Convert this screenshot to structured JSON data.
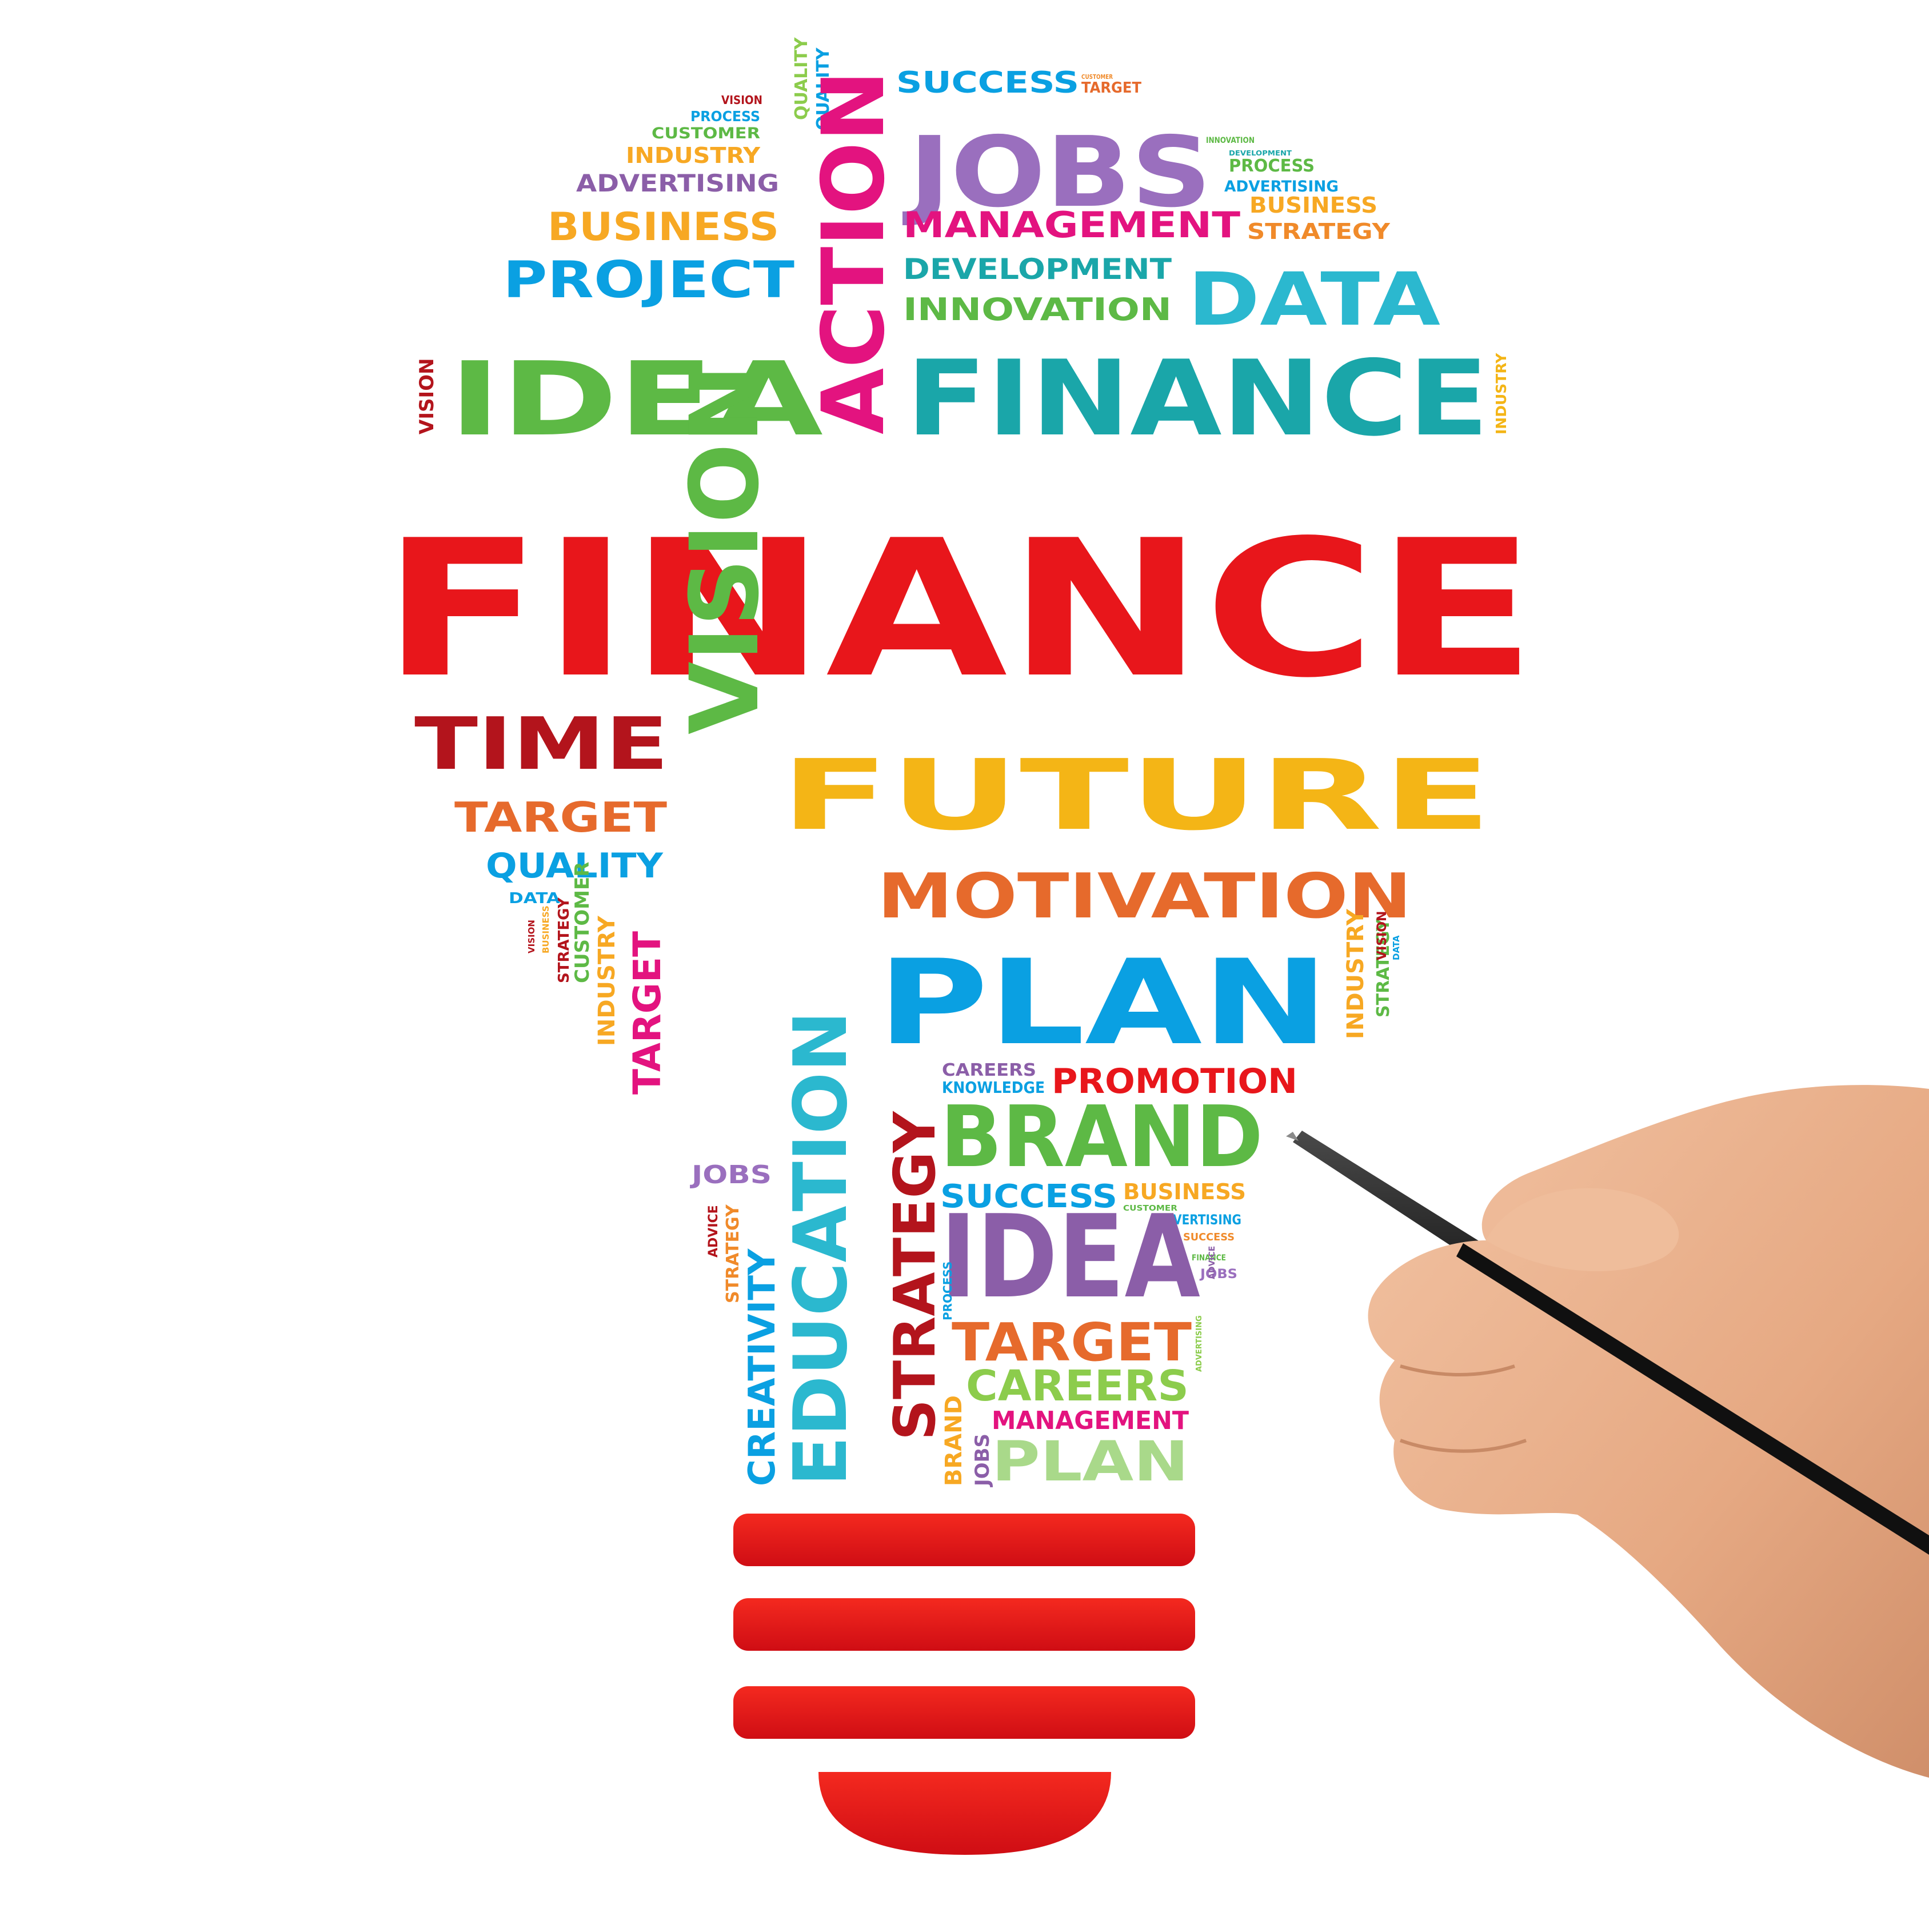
{
  "colors": {
    "red": "#e8161b",
    "dark_red": "#b3141c",
    "pink": "#e3137f",
    "purple": "#9a6fbe",
    "violet": "#8b5ea8",
    "blue": "#0aa0e2",
    "cyan": "#2bb8cf",
    "teal": "#1aa6a9",
    "green": "#5db945",
    "lime": "#8ccc4c",
    "light_green": "#a9d98a",
    "orange": "#f08a2a",
    "amber": "#f7a823",
    "yellow": "#f4b516",
    "burnt": "#e66a2c",
    "skin": "#eab28f",
    "pen": "#1b1b1b"
  },
  "words": [
    {
      "text": "SUCCESS",
      "color": "blue"
    },
    {
      "text": "CUSTOMER",
      "color": "orange"
    },
    {
      "text": "TARGET",
      "color": "burnt"
    },
    {
      "text": "VISION",
      "color": "dark_red"
    },
    {
      "text": "PROCESS",
      "color": "blue"
    },
    {
      "text": "CUSTOMER",
      "color": "green"
    },
    {
      "text": "INDUSTRY",
      "color": "amber"
    },
    {
      "text": "QUALITY",
      "color": "lime"
    },
    {
      "text": "QUALITY",
      "color": "blue"
    },
    {
      "text": "ADVERTISING",
      "color": "violet"
    },
    {
      "text": "BUSINESS",
      "color": "amber"
    },
    {
      "text": "PROJECT",
      "color": "blue"
    },
    {
      "text": "ACTION",
      "color": "pink"
    },
    {
      "text": "JOBS",
      "color": "purple"
    },
    {
      "text": "INNOVATION",
      "color": "green"
    },
    {
      "text": "DEVELOPMENT",
      "color": "teal"
    },
    {
      "text": "PROCESS",
      "color": "green"
    },
    {
      "text": "ADVERTISING",
      "color": "blue"
    },
    {
      "text": "BUSINESS",
      "color": "amber"
    },
    {
      "text": "STRATEGY",
      "color": "orange"
    },
    {
      "text": "MANAGEMENT",
      "color": "pink"
    },
    {
      "text": "DEVELOPMENT",
      "color": "teal"
    },
    {
      "text": "INNOVATION",
      "color": "green"
    },
    {
      "text": "DATA",
      "color": "cyan"
    },
    {
      "text": "VISION",
      "color": "dark_red"
    },
    {
      "text": "IDEA",
      "color": "green"
    },
    {
      "text": "FINANCE",
      "color": "teal"
    },
    {
      "text": "INDUSTRY",
      "color": "yellow"
    },
    {
      "text": "FINANCE",
      "color": "red"
    },
    {
      "text": "TIME",
      "color": "dark_red"
    },
    {
      "text": "VISION",
      "color": "green"
    },
    {
      "text": "FUTURE",
      "color": "yellow"
    },
    {
      "text": "TARGET",
      "color": "burnt"
    },
    {
      "text": "QUALITY",
      "color": "blue"
    },
    {
      "text": "DATA",
      "color": "blue"
    },
    {
      "text": "VISION",
      "color": "dark_red"
    },
    {
      "text": "BUSINESS",
      "color": "amber"
    },
    {
      "text": "STRATEGY",
      "color": "dark_red"
    },
    {
      "text": "CUSTOMER",
      "color": "green"
    },
    {
      "text": "INDUSTRY",
      "color": "amber"
    },
    {
      "text": "TARGET",
      "color": "pink"
    },
    {
      "text": "EDUCATION",
      "color": "cyan"
    },
    {
      "text": "MOTIVATION",
      "color": "burnt"
    },
    {
      "text": "PLAN",
      "color": "blue"
    },
    {
      "text": "INDUSTRY",
      "color": "amber"
    },
    {
      "text": "STRATEGY",
      "color": "green"
    },
    {
      "text": "VISION",
      "color": "dark_red"
    },
    {
      "text": "DATA",
      "color": "blue"
    },
    {
      "text": "STRATEGY",
      "color": "dark_red"
    },
    {
      "text": "CAREERS",
      "color": "violet"
    },
    {
      "text": "KNOWLEDGE",
      "color": "blue"
    },
    {
      "text": "PROMOTION",
      "color": "red"
    },
    {
      "text": "BRAND",
      "color": "green"
    },
    {
      "text": "JOBS",
      "color": "purple"
    },
    {
      "text": "ADVICE",
      "color": "dark_red"
    },
    {
      "text": "STRATEGY",
      "color": "orange"
    },
    {
      "text": "CREATIVITY",
      "color": "blue"
    },
    {
      "text": "SUCCESS",
      "color": "blue"
    },
    {
      "text": "BUSINESS",
      "color": "amber"
    },
    {
      "text": "CUSTOMER",
      "color": "green"
    },
    {
      "text": "ADVERTISING",
      "color": "blue"
    },
    {
      "text": "SUCCESS",
      "color": "orange"
    },
    {
      "text": "FINANCE",
      "color": "green"
    },
    {
      "text": "JOBS",
      "color": "purple"
    },
    {
      "text": "ADVICE",
      "color": "violet"
    },
    {
      "text": "IDEA",
      "color": "violet"
    },
    {
      "text": "TARGET",
      "color": "burnt"
    },
    {
      "text": "ADVERTISING",
      "color": "lime"
    },
    {
      "text": "PROCESS",
      "color": "blue"
    },
    {
      "text": "CAREERS",
      "color": "lime"
    },
    {
      "text": "BRAND",
      "color": "amber"
    },
    {
      "text": "JOBS",
      "color": "violet"
    },
    {
      "text": "MANAGEMENT",
      "color": "pink"
    },
    {
      "text": "PLAN",
      "color": "light_green"
    }
  ]
}
